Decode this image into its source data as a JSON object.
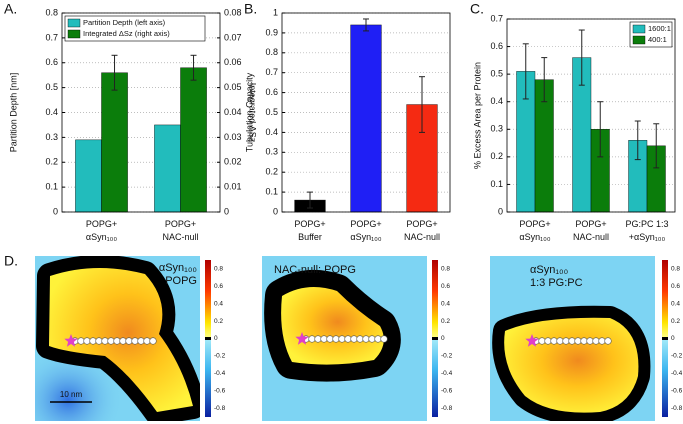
{
  "chart_data": [
    {
      "type": "bar",
      "label": "A.",
      "ylabel": "Partition Depth [nm]",
      "y2label": "Integrated ΔSz",
      "categories": [
        "POPG+\nαSyn₁₀₀",
        "POPG+\nNAC-null"
      ],
      "series": [
        {
          "name": "Partition Depth (left axis)",
          "color": "#22bcbc",
          "values": [
            0.29,
            0.35
          ]
        },
        {
          "name": "Integrated ΔSz (right axis)",
          "color": "#0b7d0b",
          "values": [
            0.056,
            0.058
          ],
          "errors": [
            0.007,
            0.005
          ],
          "axis": "y2"
        }
      ],
      "ylim": [
        0,
        0.8
      ],
      "yticks": [
        0,
        0.1,
        0.2,
        0.3,
        0.4,
        0.5,
        0.6,
        0.7,
        0.8
      ],
      "y2lim": [
        0,
        0.08
      ],
      "y2ticks": [
        0,
        0.01,
        0.02,
        0.03,
        0.04,
        0.05,
        0.06,
        0.07,
        0.08
      ],
      "grid": true,
      "legend": "upper left"
    },
    {
      "type": "bar",
      "label": "B.",
      "ylabel": "Tubulation Capacity",
      "categories": [
        "POPG+\nBuffer",
        "POPG+\nαSyn₁₀₀",
        "POPG+\nNAC-null"
      ],
      "values": [
        0.06,
        0.94,
        0.54
      ],
      "errors": [
        0.04,
        0.03,
        0.14
      ],
      "colors": [
        "#000000",
        "#1f1ff5",
        "#f52a12"
      ],
      "ylim": [
        0,
        1
      ],
      "yticks": [
        0,
        0.1,
        0.2,
        0.3,
        0.4,
        0.5,
        0.6,
        0.7,
        0.8,
        0.9,
        1
      ],
      "grid": true
    },
    {
      "type": "bar",
      "label": "C.",
      "ylabel": "% Excess Area per Protein",
      "categories": [
        "POPG+\nαSyn₁₀₀",
        "POPG+\nNAC-null",
        "PG:PC 1:3\n+αSyn₁₀₀"
      ],
      "series": [
        {
          "name": "1600:1",
          "color": "#22bcbc",
          "values": [
            0.51,
            0.56,
            0.26
          ],
          "errors": [
            0.1,
            0.1,
            0.07
          ]
        },
        {
          "name": "400:1",
          "color": "#0b7d0b",
          "values": [
            0.48,
            0.3,
            0.24
          ],
          "errors": [
            0.08,
            0.1,
            0.08
          ]
        }
      ],
      "ylim": [
        0,
        0.7
      ],
      "yticks": [
        0,
        0.1,
        0.2,
        0.3,
        0.4,
        0.5,
        0.6,
        0.7
      ],
      "grid": true,
      "legend": "upper right"
    }
  ],
  "panel_d": {
    "label": "D.",
    "scale_bar": "10 nm",
    "maps": [
      {
        "label": "αSyn₁₀₀\nPOPG"
      },
      {
        "label": "NAC-null: POPG"
      },
      {
        "label": "αSyn₁₀₀\n1:3 PG:PC"
      }
    ],
    "colorbar": {
      "clim": [
        -0.9,
        0.9
      ],
      "ticks": [
        0.8,
        0.6,
        0.4,
        0.2,
        0,
        -0.2,
        -0.4,
        -0.6,
        -0.8
      ]
    }
  }
}
